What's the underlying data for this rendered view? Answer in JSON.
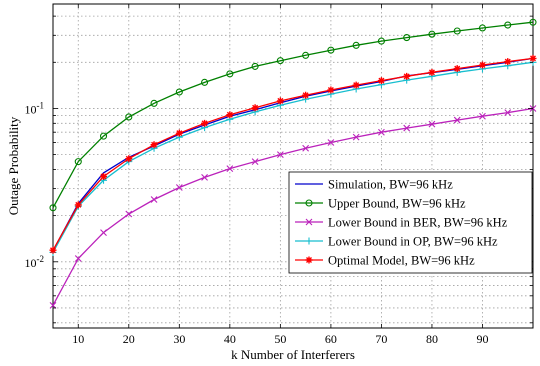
{
  "chart_data": {
    "type": "line",
    "title": "",
    "xlabel": "k Number of Interferers",
    "ylabel": "Outage Probability",
    "xlim": [
      5,
      100
    ],
    "ylim": [
      0.0037,
      0.48
    ],
    "yscale": "log",
    "grid": true,
    "legend_position": "center-right",
    "x_ticks": [
      10,
      20,
      30,
      40,
      50,
      60,
      70,
      80,
      90
    ],
    "x_tick_labels": [
      "10",
      "20",
      "30",
      "40",
      "50",
      "60",
      "70",
      "80",
      "90"
    ],
    "y_ticks": [
      0.01,
      0.1
    ],
    "y_tick_labels": [
      {
        "base": "10",
        "exp": "-2"
      },
      {
        "base": "10",
        "exp": "-1"
      }
    ],
    "x": [
      5,
      10,
      15,
      20,
      25,
      30,
      35,
      40,
      45,
      50,
      55,
      60,
      65,
      70,
      75,
      80,
      85,
      90,
      95,
      100
    ],
    "series": [
      {
        "name": "Simulation, BW=96 kHz",
        "color": "#0000cc",
        "marker": "none",
        "values": [
          0.0118,
          0.024,
          0.038,
          0.048,
          0.057,
          0.068,
          0.078,
          0.089,
          0.098,
          0.109,
          0.12,
          0.13,
          0.14,
          0.15,
          0.163,
          0.171,
          0.18,
          0.19,
          0.2,
          0.212
        ]
      },
      {
        "name": "Upper Bound, BW=96 kHz",
        "color": "#008000",
        "marker": "circle",
        "values": [
          0.0225,
          0.045,
          0.066,
          0.088,
          0.108,
          0.128,
          0.148,
          0.168,
          0.188,
          0.205,
          0.222,
          0.24,
          0.258,
          0.275,
          0.29,
          0.305,
          0.32,
          0.335,
          0.35,
          0.365
        ]
      },
      {
        "name": "Lower Bound in BER, BW=96 kHz",
        "color": "#bb22bb",
        "marker": "x",
        "values": [
          0.0052,
          0.0105,
          0.0155,
          0.0205,
          0.0255,
          0.0305,
          0.0355,
          0.0405,
          0.045,
          0.05,
          0.055,
          0.06,
          0.065,
          0.07,
          0.0745,
          0.079,
          0.084,
          0.089,
          0.094,
          0.1
        ]
      },
      {
        "name": "Lower Bound in OP, BW=96 kHz",
        "color": "#17becf",
        "marker": "plus",
        "values": [
          0.0115,
          0.023,
          0.034,
          0.045,
          0.055,
          0.065,
          0.075,
          0.085,
          0.095,
          0.105,
          0.115,
          0.124,
          0.134,
          0.143,
          0.153,
          0.162,
          0.172,
          0.181,
          0.19,
          0.2
        ]
      },
      {
        "name": "Optimal Model, BW=96 kHz",
        "color": "#ff0000",
        "marker": "star",
        "values": [
          0.0119,
          0.0235,
          0.036,
          0.047,
          0.058,
          0.069,
          0.08,
          0.091,
          0.101,
          0.112,
          0.122,
          0.132,
          0.142,
          0.152,
          0.162,
          0.172,
          0.182,
          0.192,
          0.202,
          0.212
        ]
      }
    ]
  }
}
